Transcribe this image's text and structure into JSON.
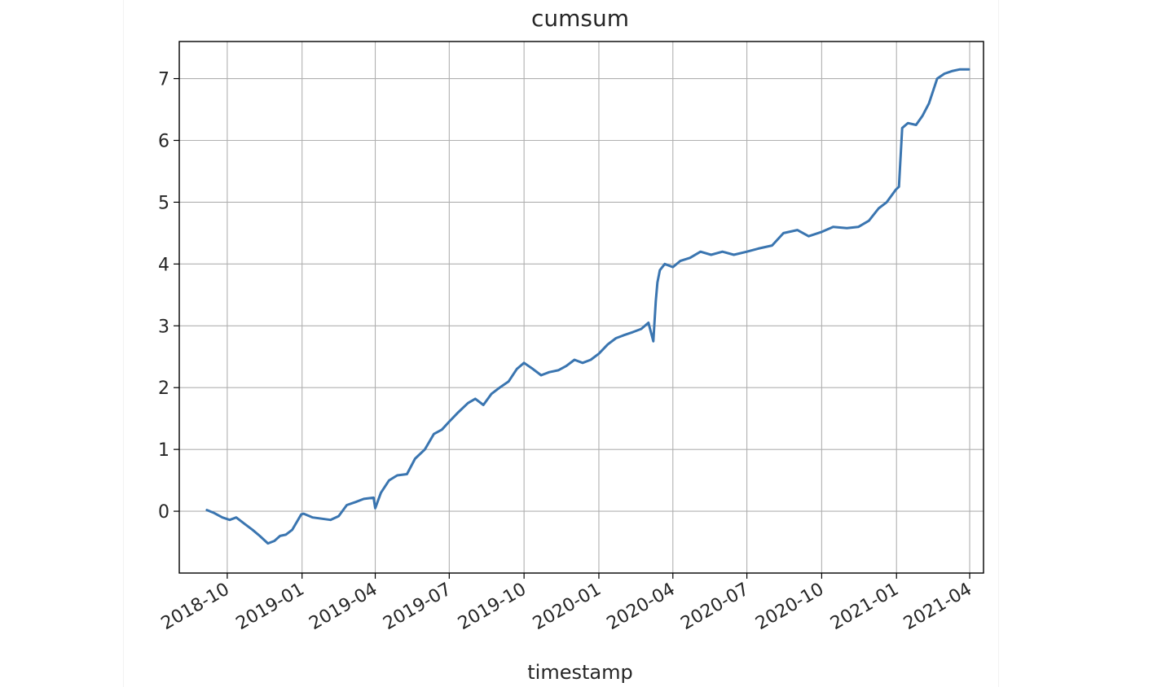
{
  "chart_data": {
    "type": "line",
    "title": "cumsum",
    "xlabel": "timestamp",
    "ylabel": "",
    "xlim": [
      "2018-08-03",
      "2021-04-18"
    ],
    "ylim": [
      -1.0,
      7.6
    ],
    "grid": true,
    "xticks": [
      "2018-10",
      "2019-01",
      "2019-04",
      "2019-07",
      "2019-10",
      "2020-01",
      "2020-04",
      "2020-07",
      "2020-10",
      "2021-01",
      "2021-04"
    ],
    "yticks": [
      0,
      1,
      2,
      3,
      4,
      5,
      6,
      7
    ],
    "colors": {
      "line": "#3a75b0",
      "grid": "#b0b0b0",
      "axes": "#000000"
    },
    "series": [
      {
        "x": [
          "2018-09-06",
          "2018-09-15",
          "2018-09-25",
          "2018-10-04",
          "2018-10-12",
          "2018-10-22",
          "2018-11-01",
          "2018-11-10",
          "2018-11-20",
          "2018-11-28",
          "2018-12-05",
          "2018-12-12",
          "2018-12-20",
          "2018-12-31",
          "2019-01-03",
          "2019-01-14",
          "2019-01-25",
          "2019-02-05",
          "2019-02-15",
          "2019-02-25",
          "2019-03-08",
          "2019-03-18",
          "2019-03-30",
          "2019-04-01",
          "2019-04-08",
          "2019-04-18",
          "2019-04-28",
          "2019-05-10",
          "2019-05-20",
          "2019-06-01",
          "2019-06-12",
          "2019-06-22",
          "2019-07-01",
          "2019-07-12",
          "2019-07-24",
          "2019-08-02",
          "2019-08-12",
          "2019-08-22",
          "2019-09-01",
          "2019-09-12",
          "2019-09-22",
          "2019-10-01",
          "2019-10-12",
          "2019-10-22",
          "2019-11-01",
          "2019-11-12",
          "2019-11-22",
          "2019-12-02",
          "2019-12-12",
          "2019-12-22",
          "2020-01-01",
          "2020-01-12",
          "2020-01-22",
          "2020-02-01",
          "2020-02-12",
          "2020-02-22",
          "2020-03-02",
          "2020-03-08",
          "2020-03-11",
          "2020-03-13",
          "2020-03-16",
          "2020-03-22",
          "2020-04-01",
          "2020-04-10",
          "2020-04-22",
          "2020-05-05",
          "2020-05-18",
          "2020-06-01",
          "2020-06-15",
          "2020-07-01",
          "2020-07-15",
          "2020-08-01",
          "2020-08-15",
          "2020-09-01",
          "2020-09-15",
          "2020-10-01",
          "2020-10-15",
          "2020-11-01",
          "2020-11-15",
          "2020-11-28",
          "2020-12-10",
          "2020-12-20",
          "2020-12-31",
          "2021-01-04",
          "2021-01-08",
          "2021-01-15",
          "2021-01-25",
          "2021-02-02",
          "2021-02-10",
          "2021-02-20",
          "2021-03-01",
          "2021-03-10",
          "2021-03-20",
          "2021-03-31"
        ],
        "y": [
          0.02,
          -0.03,
          -0.1,
          -0.14,
          -0.1,
          -0.2,
          -0.3,
          -0.4,
          -0.52,
          -0.48,
          -0.4,
          -0.38,
          -0.3,
          -0.05,
          -0.04,
          -0.1,
          -0.12,
          -0.14,
          -0.08,
          0.1,
          0.15,
          0.2,
          0.22,
          0.05,
          0.3,
          0.5,
          0.58,
          0.6,
          0.85,
          1.0,
          1.25,
          1.32,
          1.45,
          1.6,
          1.75,
          1.82,
          1.72,
          1.9,
          2.0,
          2.1,
          2.3,
          2.4,
          2.3,
          2.2,
          2.25,
          2.28,
          2.35,
          2.45,
          2.4,
          2.45,
          2.55,
          2.7,
          2.8,
          2.85,
          2.9,
          2.95,
          3.05,
          2.75,
          3.4,
          3.7,
          3.9,
          4.0,
          3.95,
          4.05,
          4.1,
          4.2,
          4.15,
          4.2,
          4.15,
          4.2,
          4.25,
          4.3,
          4.5,
          4.55,
          4.45,
          4.52,
          4.6,
          4.58,
          4.6,
          4.7,
          4.9,
          5.0,
          5.2,
          5.25,
          6.2,
          6.28,
          6.25,
          6.4,
          6.6,
          7.0,
          7.08,
          7.12,
          7.15,
          7.15
        ]
      }
    ]
  }
}
